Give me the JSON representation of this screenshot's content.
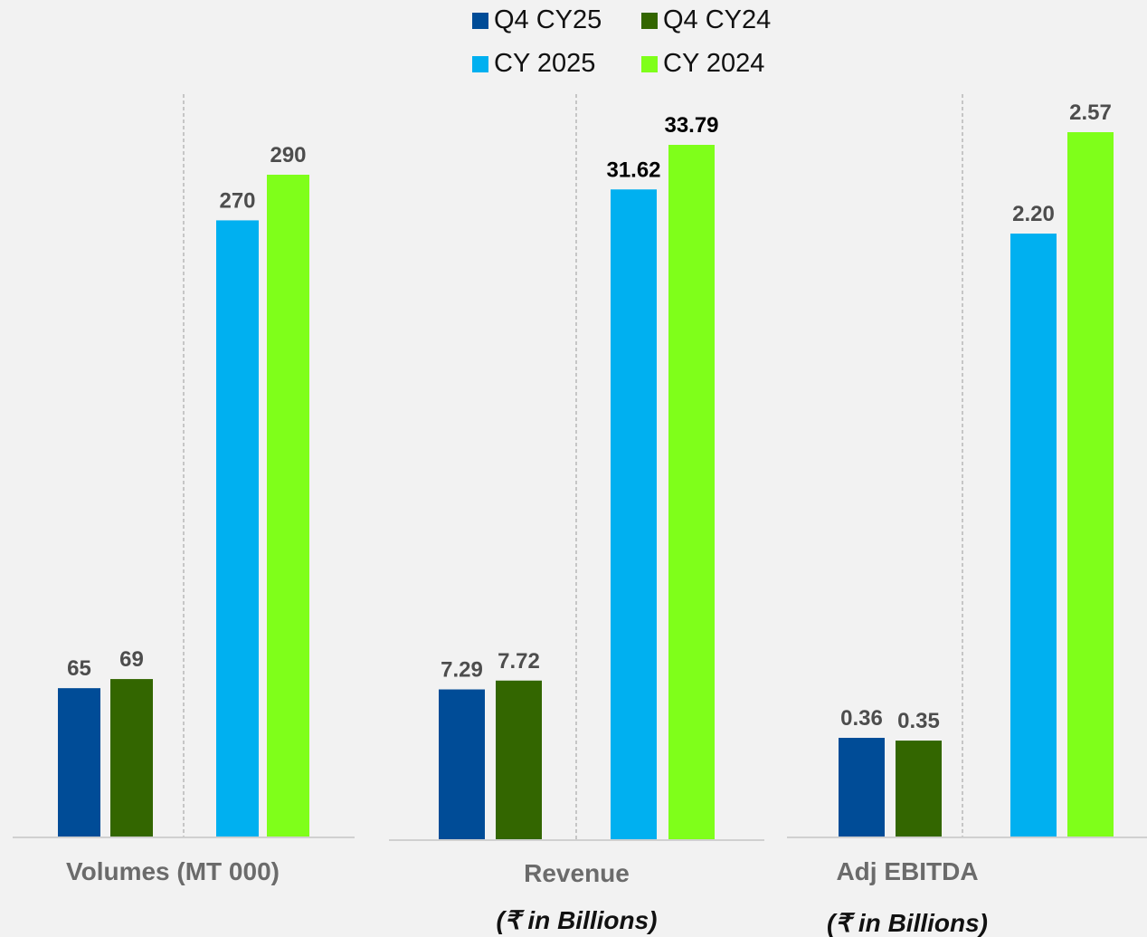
{
  "legend": [
    {
      "label": "Q4 CY25",
      "color": "#004c97"
    },
    {
      "label": "Q4 CY24",
      "color": "#336600"
    },
    {
      "label": "CY 2025",
      "color": "#00b0f0"
    },
    {
      "label": "CY 2024",
      "color": "#7fff1a"
    }
  ],
  "chart_data": [
    {
      "type": "bar",
      "xlabel": "Volumes (MT 000)",
      "unit": "",
      "series": [
        {
          "name": "Q4 CY25",
          "value": 65,
          "label": "65"
        },
        {
          "name": "Q4 CY24",
          "value": 69,
          "label": "69"
        },
        {
          "name": "CY 2025",
          "value": 270,
          "label": "270"
        },
        {
          "name": "CY 2024",
          "value": 290,
          "label": "290"
        }
      ]
    },
    {
      "type": "bar",
      "xlabel": "Revenue",
      "unit": "(₹ in Billions)",
      "series": [
        {
          "name": "Q4 CY25",
          "value": 7.29,
          "label": "7.29"
        },
        {
          "name": "Q4 CY24",
          "value": 7.72,
          "label": "7.72"
        },
        {
          "name": "CY 2025",
          "value": 31.62,
          "label": "31.62"
        },
        {
          "name": "CY 2024",
          "value": 33.79,
          "label": "33.79"
        }
      ]
    },
    {
      "type": "bar",
      "xlabel": "Adj EBITDA",
      "unit": "(₹ in Billions)",
      "series": [
        {
          "name": "Q4 CY25",
          "value": 0.36,
          "label": "0.36"
        },
        {
          "name": "Q4 CY24",
          "value": 0.35,
          "label": "0.35"
        },
        {
          "name": "CY 2025",
          "value": 2.2,
          "label": "2.20"
        },
        {
          "name": "CY 2024",
          "value": 2.57,
          "label": "2.57"
        }
      ]
    }
  ]
}
